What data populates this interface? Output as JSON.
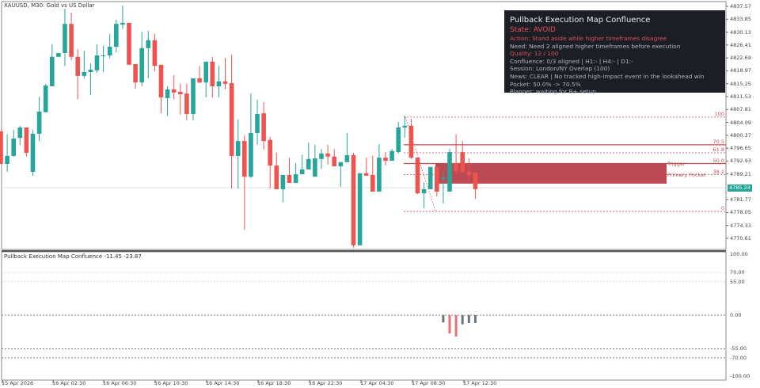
{
  "header": {
    "symbol_label": "XAUUSD, M30:  Gold vs US Dollar"
  },
  "colors": {
    "bull": "#26a69a",
    "bear": "#ef5350",
    "zone": "#b8404c",
    "fib": "#c0505a",
    "panel_bg": "#1b1e25"
  },
  "price_axis": {
    "range": [
      4770.61,
      4837.57
    ],
    "labels": [
      "4837.57",
      "4833.85",
      "4830.13",
      "4826.41",
      "4822.69",
      "4818.97",
      "4815.25",
      "4811.53",
      "4807.81",
      "4804.09",
      "4800.37",
      "4796.65",
      "4792.93",
      "4789.21",
      "4781.77",
      "4778.05",
      "4774.33",
      "4770.61"
    ],
    "current_price": "4785.24"
  },
  "time_axis": {
    "labels": [
      "15 Apr 2026",
      "16 Apr 02:30",
      "16 Apr 06:30",
      "16 Apr 10:30",
      "16 Apr 14:30",
      "16 Apr 18:30",
      "16 Apr 22:30",
      "17 Apr 04:30",
      "17 Apr 08:30",
      "17 Apr 12:30"
    ]
  },
  "candles_ohlc": [
    [
      4801.5,
      4801.5,
      4792.1,
      4792.1
    ],
    [
      4792.1,
      4800.6,
      4789.8,
      4794.4
    ],
    [
      4794.4,
      4801.9,
      4794.2,
      4799.4
    ],
    [
      4799.6,
      4803.1,
      4797.6,
      4802.6
    ],
    [
      4802.6,
      4802.6,
      4794.2,
      4795.3
    ],
    [
      4789.8,
      4801.9,
      4788.7,
      4800.8
    ],
    [
      4800.8,
      4811.5,
      4798.7,
      4807.2
    ],
    [
      4807.0,
      4815.2,
      4807.0,
      4814.7
    ],
    [
      4814.5,
      4826.6,
      4814.5,
      4823.0
    ],
    [
      4823.0,
      4824.1,
      4823.0,
      4824.1
    ],
    [
      4824.1,
      4836.9,
      4820.4,
      4832.5
    ],
    [
      4832.5,
      4835.7,
      4822.0,
      4823.0
    ],
    [
      4823.0,
      4825.2,
      4810.8,
      4817.5
    ],
    [
      4817.5,
      4824.8,
      4816.8,
      4818.6
    ],
    [
      4818.6,
      4821.1,
      4812.0,
      4819.3
    ],
    [
      4819.1,
      4826.6,
      4818.4,
      4823.4
    ],
    [
      4823.2,
      4826.2,
      4818.6,
      4823.4
    ],
    [
      4823.4,
      4829.6,
      4822.5,
      4825.9
    ],
    [
      4825.9,
      4833.7,
      4824.3,
      4832.5
    ],
    [
      4832.3,
      4837.8,
      4831.0,
      4832.8
    ],
    [
      4832.8,
      4832.8,
      4820.7,
      4820.7
    ],
    [
      4820.9,
      4820.9,
      4813.8,
      4815.6
    ],
    [
      4815.6,
      4830.3,
      4814.5,
      4825.5
    ],
    [
      4825.5,
      4830.5,
      4816.8,
      4827.8
    ],
    [
      4827.8,
      4829.6,
      4818.8,
      4820.4
    ],
    [
      4820.7,
      4820.7,
      4806.7,
      4811.3
    ],
    [
      4811.1,
      4814.5,
      4806.0,
      4813.6
    ],
    [
      4813.6,
      4817.7,
      4810.8,
      4812.7
    ],
    [
      4812.9,
      4815.2,
      4806.3,
      4812.2
    ],
    [
      4812.4,
      4815.2,
      4804.7,
      4806.5
    ],
    [
      4806.5,
      4816.8,
      4804.7,
      4816.8
    ],
    [
      4816.8,
      4820.4,
      4815.4,
      4815.6
    ],
    [
      4815.6,
      4821.6,
      4811.3,
      4821.6
    ],
    [
      4821.6,
      4823.0,
      4811.3,
      4814.5
    ],
    [
      4814.5,
      4820.4,
      4811.3,
      4815.9
    ],
    [
      4815.9,
      4822.7,
      4813.6,
      4815.2
    ],
    [
      4815.4,
      4823.6,
      4785.0,
      4794.4
    ],
    [
      4794.4,
      4804.9,
      4785.0,
      4798.7
    ],
    [
      4798.7,
      4800.3,
      4773.1,
      4788.4
    ],
    [
      4788.4,
      4812.4,
      4788.0,
      4801.0
    ],
    [
      4801.0,
      4810.6,
      4797.6,
      4806.5
    ],
    [
      4806.7,
      4809.9,
      4796.2,
      4798.7
    ],
    [
      4799.0,
      4799.9,
      4785.0,
      4791.6
    ],
    [
      4791.6,
      4795.3,
      4784.8,
      4784.8
    ],
    [
      4784.8,
      4788.9,
      4781.1,
      4788.9
    ],
    [
      4788.9,
      4793.9,
      4786.6,
      4786.6
    ],
    [
      4786.6,
      4792.3,
      4786.6,
      4789.1
    ],
    [
      4789.1,
      4794.8,
      4789.1,
      4790.5
    ],
    [
      4790.5,
      4798.3,
      4790.5,
      4793.5
    ],
    [
      4788.4,
      4797.6,
      4788.4,
      4793.7
    ],
    [
      4793.5,
      4796.4,
      4790.7,
      4795.1
    ],
    [
      4795.1,
      4797.6,
      4791.9,
      4794.2
    ],
    [
      4794.2,
      4796.4,
      4791.4,
      4791.4
    ],
    [
      4791.4,
      4792.6,
      4785.5,
      4792.6
    ],
    [
      4792.6,
      4801.0,
      4792.6,
      4794.6
    ],
    [
      4794.6,
      4795.3,
      4767.9,
      4768.6
    ],
    [
      4768.6,
      4789.4,
      4768.6,
      4789.4
    ],
    [
      4789.4,
      4793.9,
      4788.7,
      4788.7
    ],
    [
      4788.9,
      4794.4,
      4784.1,
      4784.1
    ],
    [
      4784.1,
      4797.8,
      4784.1,
      4793.9
    ],
    [
      4793.9,
      4795.5,
      4791.6,
      4793.0
    ],
    [
      4793.0,
      4796.4,
      4793.0,
      4795.8
    ],
    [
      4795.5,
      4804.2,
      4795.1,
      4802.6
    ],
    [
      4802.6,
      4806.0,
      4799.6,
      4803.1
    ],
    [
      4803.1,
      4805.1,
      4793.5,
      4793.9
    ],
    [
      4793.9,
      4793.9,
      4783.4,
      4783.6
    ],
    [
      4783.6,
      4786.8,
      4779.3,
      4784.8
    ],
    [
      4784.8,
      4791.2,
      4784.8,
      4791.2
    ],
    [
      4791.2,
      4791.2,
      4782.7,
      4784.1
    ],
    [
      4787.8,
      4790.0,
      4780.7,
      4788.2
    ],
    [
      4784.1,
      4796.4,
      4784.1,
      4795.5
    ],
    [
      4792.3,
      4800.6,
      4789.1,
      4790.0
    ],
    [
      4795.5,
      4798.7,
      4789.8,
      4789.8
    ],
    [
      4789.8,
      4793.7,
      4786.8,
      4788.9
    ],
    [
      4789.6,
      4789.6,
      4782.0,
      4784.8
    ]
  ],
  "fib": {
    "levels": [
      {
        "label": "100",
        "price": 4805.6,
        "style": "dotted"
      },
      {
        "label": "70.5",
        "price": 4797.6,
        "style": "solid"
      },
      {
        "label": "61.8",
        "price": 4795.3,
        "style": "dotted"
      },
      {
        "label": "50.0",
        "price": 4792.2,
        "style": "solid"
      },
      {
        "label": "38.2",
        "price": 4789.0,
        "style": "dotted"
      },
      {
        "label": "0",
        "price": 4778.4,
        "style": "dotted"
      }
    ],
    "zone": {
      "top": 4792.1,
      "bottom": 4786.4
    },
    "trigger_label": "Trigger",
    "pocket_label": "Primary Pocket"
  },
  "panel": {
    "title": "Pullback Execution Map Confluence",
    "state": "State: AVOID",
    "action": "Action: Stand aside while higher timeframes disagree",
    "need": "Need: Need 2 aligned higher timeframes before execution",
    "quality": "Quality: 12 / 100",
    "confluence": "Confluence: 0/3 aligned | H1:- | H4:- | D1:-",
    "session": "Session: London/NY Overlap (100)",
    "news": "News: CLEAR | No tracked high-impact event in the lookahead win",
    "pocket": "Pocket: 50.0% -> 70.5%",
    "planner": "Planner: waiting for B+ setup"
  },
  "subwindow": {
    "title": "Pullback Execution Map Confluence -11.45 -23.87",
    "range": [
      -100,
      100
    ],
    "levels": [
      100,
      70,
      55,
      0,
      -55,
      -70,
      -100
    ],
    "level_labels": [
      "100.00",
      "70.00",
      "55.00",
      "0.00",
      "-55.00",
      "-70.00",
      "-100.00"
    ],
    "histogram": [
      {
        "candle": 69,
        "value": -12,
        "color": "#6b7580"
      },
      {
        "candle": 70,
        "value": -30,
        "color": "#e57373"
      },
      {
        "candle": 71,
        "value": -35,
        "color": "#e57373"
      },
      {
        "candle": 72,
        "value": -15,
        "color": "#6b7580"
      },
      {
        "candle": 73,
        "value": -13,
        "color": "#6b7580"
      },
      {
        "candle": 74,
        "value": -13,
        "color": "#6b7580"
      }
    ]
  }
}
